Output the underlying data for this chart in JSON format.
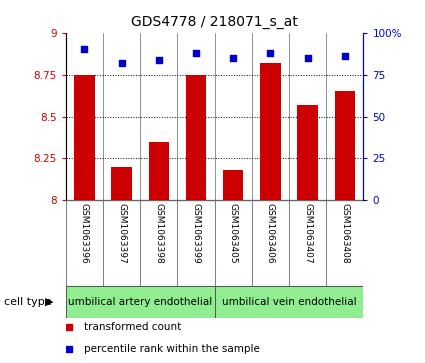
{
  "title": "GDS4778 / 218071_s_at",
  "samples": [
    "GSM1063396",
    "GSM1063397",
    "GSM1063398",
    "GSM1063399",
    "GSM1063405",
    "GSM1063406",
    "GSM1063407",
    "GSM1063408"
  ],
  "bar_values": [
    8.75,
    8.2,
    8.35,
    8.75,
    8.18,
    8.82,
    8.57,
    8.65
  ],
  "dot_values": [
    90,
    82,
    84,
    88,
    85,
    88,
    85,
    86
  ],
  "ylim_left": [
    8.0,
    9.0
  ],
  "ylim_right": [
    0,
    100
  ],
  "yticks_left": [
    8.0,
    8.25,
    8.5,
    8.75,
    9.0
  ],
  "yticks_right": [
    0,
    25,
    50,
    75,
    100
  ],
  "ytick_labels_left": [
    "8",
    "8.25",
    "8.5",
    "8.75",
    "9"
  ],
  "ytick_labels_right": [
    "0",
    "25",
    "50",
    "75",
    "100%"
  ],
  "bar_color": "#cc0000",
  "dot_color": "#0000cc",
  "cell_type_groups": [
    {
      "label": "umbilical artery endothelial",
      "start": 0,
      "end": 3
    },
    {
      "label": "umbilical vein endothelial",
      "start": 4,
      "end": 7
    }
  ],
  "cell_type_color": "#90EE90",
  "cell_type_border": "#555555",
  "legend_items": [
    {
      "color": "#cc0000",
      "label": "transformed count"
    },
    {
      "color": "#0000cc",
      "label": "percentile rank within the sample"
    }
  ],
  "cell_type_label": "cell type",
  "sample_bg_color": "#cccccc",
  "divider_color": "#666666",
  "grid_dotted": [
    8.25,
    8.5,
    8.75
  ],
  "bar_width": 0.55
}
